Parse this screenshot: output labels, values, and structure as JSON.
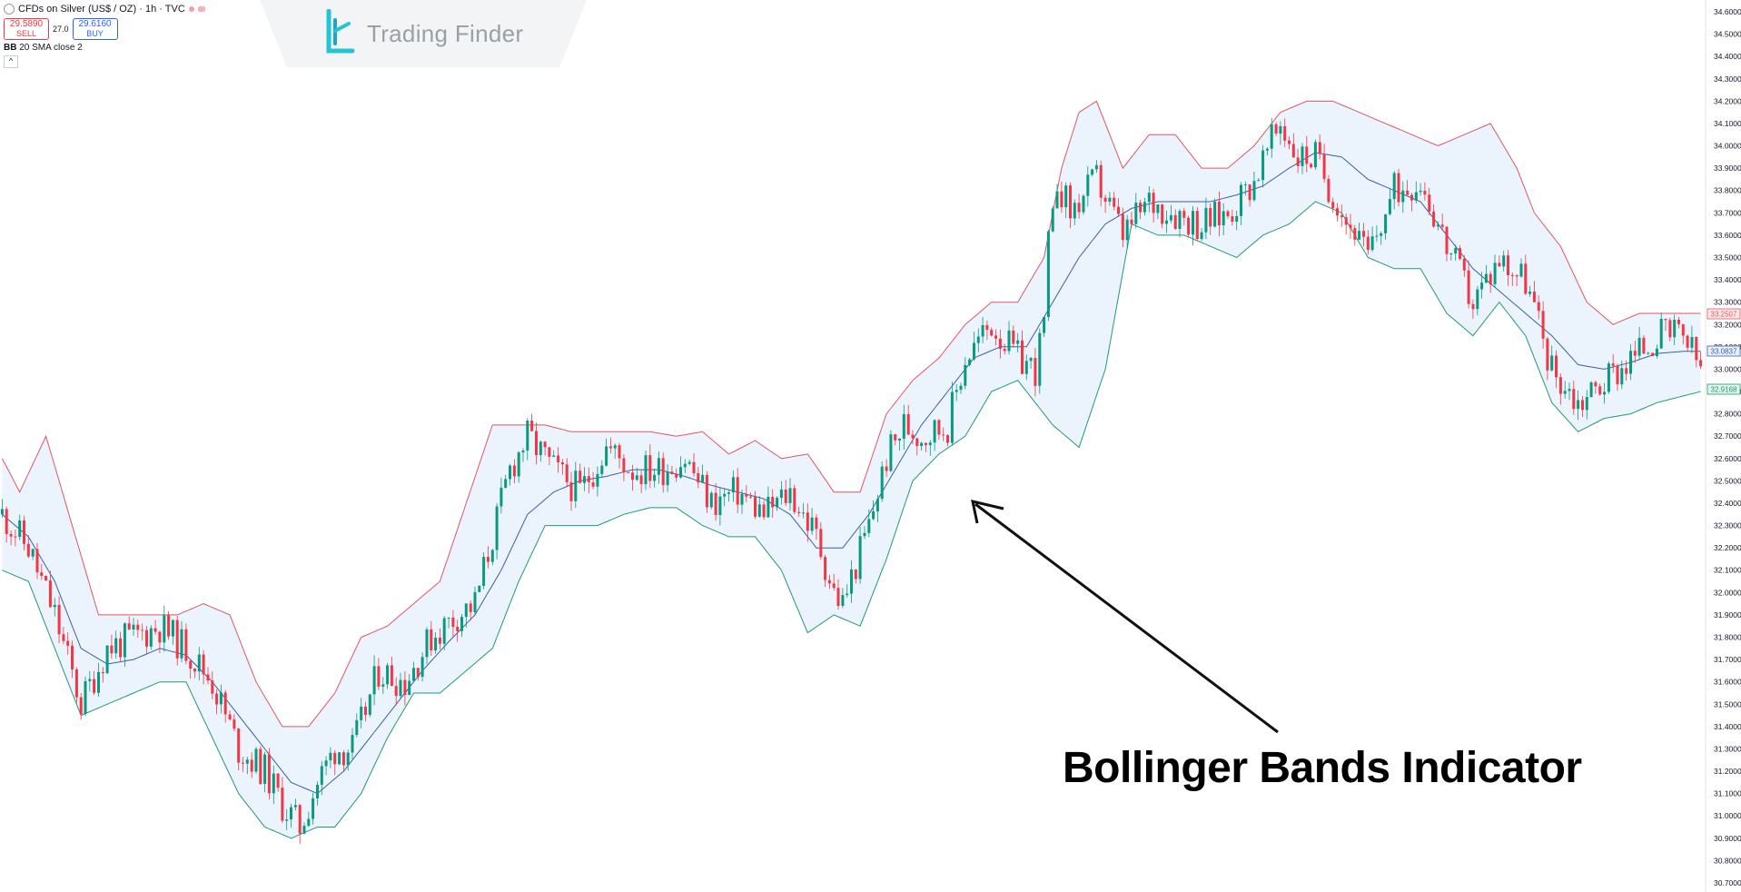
{
  "header": {
    "symbol_title": "CFDs on Silver (US$ / OZ) · 1h · TVC",
    "sell_price": "29.5890",
    "sell_label": "SELL",
    "spread": "27.0",
    "buy_price": "29.6160",
    "buy_label": "BUY",
    "indicator_abbr": "BB",
    "indicator_params": "20 SMA close 2",
    "collapse_glyph": "^"
  },
  "logo": {
    "text": "Trading Finder",
    "accent": "#22c4d6"
  },
  "annotation": {
    "text": "Bollinger Bands Indicator"
  },
  "colors": {
    "up": "#089981",
    "down": "#f23645",
    "upper_band": "#e0565f",
    "lower_band": "#1f9a73",
    "basis": "#3a5fa8",
    "band_fill": "#e8f1fb"
  },
  "price_labels": {
    "upper": "33.2507",
    "basis": "33.0837",
    "lower": "32.9168"
  },
  "chart_data": {
    "type": "candlestick",
    "indicator": "Bollinger Bands (20, SMA, close, 2)",
    "ylim": [
      30.7,
      34.6
    ],
    "y_ticks": [
      "34.6000",
      "34.5000",
      "34.4000",
      "34.3000",
      "34.2000",
      "34.1000",
      "34.0000",
      "33.9000",
      "33.8000",
      "33.7000",
      "33.6000",
      "33.5000",
      "33.4000",
      "33.3000",
      "33.2000",
      "33.1000",
      "33.0000",
      "32.9000",
      "32.8000",
      "32.7000",
      "32.6000",
      "32.5000",
      "32.4000",
      "32.3000",
      "32.2000",
      "32.1000",
      "32.0000",
      "31.9000",
      "31.8000",
      "31.7000",
      "31.6000",
      "31.5000",
      "31.4000",
      "31.3000",
      "31.2000",
      "31.1000",
      "31.0000",
      "30.9000",
      "30.8000",
      "30.7000"
    ],
    "close_path": [
      [
        0,
        32.35
      ],
      [
        6,
        32.2
      ],
      [
        12,
        31.9
      ],
      [
        18,
        31.5
      ],
      [
        24,
        31.75
      ],
      [
        30,
        31.8
      ],
      [
        36,
        31.85
      ],
      [
        42,
        31.75
      ],
      [
        48,
        31.6
      ],
      [
        54,
        31.3
      ],
      [
        60,
        31.2
      ],
      [
        64,
        31.05
      ],
      [
        68,
        30.95
      ],
      [
        72,
        31.15
      ],
      [
        76,
        31.3
      ],
      [
        80,
        31.3
      ],
      [
        86,
        31.65
      ],
      [
        92,
        31.6
      ],
      [
        98,
        31.8
      ],
      [
        104,
        31.9
      ],
      [
        108,
        31.95
      ],
      [
        112,
        32.25
      ],
      [
        116,
        32.55
      ],
      [
        120,
        32.7
      ],
      [
        126,
        32.55
      ],
      [
        132,
        32.45
      ],
      [
        138,
        32.65
      ],
      [
        144,
        32.55
      ],
      [
        150,
        32.55
      ],
      [
        156,
        32.6
      ],
      [
        162,
        32.4
      ],
      [
        168,
        32.45
      ],
      [
        174,
        32.35
      ],
      [
        180,
        32.45
      ],
      [
        186,
        32.25
      ],
      [
        190,
        32.0
      ],
      [
        192,
        31.95
      ],
      [
        198,
        32.3
      ],
      [
        202,
        32.6
      ],
      [
        206,
        32.75
      ],
      [
        210,
        32.7
      ],
      [
        216,
        32.75
      ],
      [
        220,
        33.05
      ],
      [
        226,
        33.2
      ],
      [
        232,
        33.05
      ],
      [
        236,
        33.0
      ],
      [
        238,
        33.2
      ],
      [
        240,
        33.9
      ],
      [
        244,
        33.7
      ],
      [
        250,
        33.85
      ],
      [
        256,
        33.6
      ],
      [
        262,
        33.75
      ],
      [
        268,
        33.7
      ],
      [
        274,
        33.65
      ],
      [
        280,
        33.7
      ],
      [
        286,
        33.85
      ],
      [
        292,
        34.1
      ],
      [
        296,
        33.95
      ],
      [
        300,
        33.95
      ],
      [
        306,
        33.7
      ],
      [
        312,
        33.5
      ],
      [
        318,
        33.8
      ],
      [
        324,
        33.85
      ],
      [
        330,
        33.55
      ],
      [
        336,
        33.3
      ],
      [
        342,
        33.5
      ],
      [
        348,
        33.4
      ],
      [
        354,
        33.0
      ],
      [
        360,
        32.85
      ],
      [
        366,
        32.95
      ],
      [
        372,
        33.05
      ],
      [
        378,
        33.15
      ],
      [
        384,
        33.15
      ],
      [
        388,
        33.0
      ]
    ],
    "upper_band": [
      [
        0,
        32.6
      ],
      [
        4,
        32.45
      ],
      [
        10,
        32.7
      ],
      [
        16,
        32.3
      ],
      [
        22,
        31.9
      ],
      [
        28,
        31.9
      ],
      [
        34,
        31.9
      ],
      [
        40,
        31.9
      ],
      [
        46,
        31.95
      ],
      [
        52,
        31.9
      ],
      [
        58,
        31.6
      ],
      [
        64,
        31.4
      ],
      [
        70,
        31.4
      ],
      [
        76,
        31.55
      ],
      [
        82,
        31.8
      ],
      [
        88,
        31.85
      ],
      [
        94,
        31.95
      ],
      [
        100,
        32.05
      ],
      [
        106,
        32.4
      ],
      [
        112,
        32.75
      ],
      [
        118,
        32.75
      ],
      [
        124,
        32.75
      ],
      [
        130,
        32.72
      ],
      [
        136,
        32.72
      ],
      [
        142,
        32.72
      ],
      [
        148,
        32.72
      ],
      [
        154,
        32.7
      ],
      [
        160,
        32.72
      ],
      [
        166,
        32.62
      ],
      [
        172,
        32.68
      ],
      [
        178,
        32.6
      ],
      [
        184,
        32.62
      ],
      [
        190,
        32.45
      ],
      [
        196,
        32.45
      ],
      [
        202,
        32.8
      ],
      [
        208,
        32.95
      ],
      [
        214,
        33.05
      ],
      [
        220,
        33.2
      ],
      [
        226,
        33.3
      ],
      [
        232,
        33.3
      ],
      [
        238,
        33.5
      ],
      [
        242,
        33.9
      ],
      [
        246,
        34.15
      ],
      [
        250,
        34.2
      ],
      [
        256,
        33.9
      ],
      [
        262,
        34.05
      ],
      [
        268,
        34.05
      ],
      [
        274,
        33.9
      ],
      [
        280,
        33.9
      ],
      [
        286,
        34.0
      ],
      [
        292,
        34.15
      ],
      [
        298,
        34.2
      ],
      [
        304,
        34.2
      ],
      [
        310,
        34.15
      ],
      [
        316,
        34.1
      ],
      [
        322,
        34.05
      ],
      [
        328,
        34.0
      ],
      [
        334,
        34.05
      ],
      [
        340,
        34.1
      ],
      [
        346,
        33.9
      ],
      [
        350,
        33.7
      ],
      [
        356,
        33.55
      ],
      [
        362,
        33.3
      ],
      [
        368,
        33.2
      ],
      [
        374,
        33.25
      ],
      [
        380,
        33.25
      ],
      [
        388,
        33.25
      ]
    ],
    "basis": [
      [
        0,
        32.35
      ],
      [
        6,
        32.25
      ],
      [
        12,
        32.05
      ],
      [
        18,
        31.75
      ],
      [
        24,
        31.68
      ],
      [
        30,
        31.7
      ],
      [
        36,
        31.75
      ],
      [
        42,
        31.72
      ],
      [
        48,
        31.6
      ],
      [
        54,
        31.45
      ],
      [
        60,
        31.3
      ],
      [
        66,
        31.15
      ],
      [
        72,
        31.1
      ],
      [
        78,
        31.2
      ],
      [
        84,
        31.35
      ],
      [
        90,
        31.5
      ],
      [
        96,
        31.65
      ],
      [
        102,
        31.78
      ],
      [
        108,
        31.9
      ],
      [
        114,
        32.1
      ],
      [
        120,
        32.35
      ],
      [
        126,
        32.45
      ],
      [
        132,
        32.5
      ],
      [
        138,
        32.52
      ],
      [
        144,
        32.55
      ],
      [
        150,
        32.55
      ],
      [
        156,
        32.52
      ],
      [
        162,
        32.48
      ],
      [
        168,
        32.45
      ],
      [
        174,
        32.42
      ],
      [
        180,
        32.35
      ],
      [
        186,
        32.2
      ],
      [
        192,
        32.2
      ],
      [
        198,
        32.35
      ],
      [
        204,
        32.55
      ],
      [
        210,
        32.75
      ],
      [
        216,
        32.9
      ],
      [
        222,
        33.05
      ],
      [
        228,
        33.1
      ],
      [
        234,
        33.1
      ],
      [
        240,
        33.3
      ],
      [
        246,
        33.5
      ],
      [
        252,
        33.65
      ],
      [
        258,
        33.72
      ],
      [
        264,
        33.75
      ],
      [
        270,
        33.75
      ],
      [
        276,
        33.75
      ],
      [
        282,
        33.78
      ],
      [
        288,
        33.82
      ],
      [
        294,
        33.9
      ],
      [
        300,
        33.97
      ],
      [
        306,
        33.95
      ],
      [
        312,
        33.85
      ],
      [
        318,
        33.8
      ],
      [
        324,
        33.75
      ],
      [
        330,
        33.6
      ],
      [
        336,
        33.45
      ],
      [
        342,
        33.35
      ],
      [
        348,
        33.25
      ],
      [
        354,
        33.15
      ],
      [
        360,
        33.02
      ],
      [
        366,
        33.0
      ],
      [
        372,
        33.03
      ],
      [
        378,
        33.07
      ],
      [
        384,
        33.08
      ],
      [
        388,
        33.08
      ]
    ],
    "lower_band": [
      [
        0,
        32.1
      ],
      [
        6,
        32.05
      ],
      [
        12,
        31.75
      ],
      [
        18,
        31.45
      ],
      [
        24,
        31.5
      ],
      [
        30,
        31.55
      ],
      [
        36,
        31.6
      ],
      [
        42,
        31.6
      ],
      [
        48,
        31.35
      ],
      [
        54,
        31.1
      ],
      [
        60,
        30.95
      ],
      [
        66,
        30.9
      ],
      [
        72,
        30.95
      ],
      [
        76,
        30.95
      ],
      [
        82,
        31.1
      ],
      [
        88,
        31.35
      ],
      [
        94,
        31.55
      ],
      [
        100,
        31.55
      ],
      [
        106,
        31.65
      ],
      [
        112,
        31.75
      ],
      [
        118,
        32.05
      ],
      [
        124,
        32.3
      ],
      [
        130,
        32.3
      ],
      [
        136,
        32.3
      ],
      [
        142,
        32.35
      ],
      [
        148,
        32.38
      ],
      [
        154,
        32.38
      ],
      [
        160,
        32.3
      ],
      [
        166,
        32.25
      ],
      [
        172,
        32.25
      ],
      [
        178,
        32.1
      ],
      [
        184,
        31.82
      ],
      [
        190,
        31.9
      ],
      [
        196,
        31.85
      ],
      [
        202,
        32.15
      ],
      [
        208,
        32.5
      ],
      [
        214,
        32.62
      ],
      [
        220,
        32.7
      ],
      [
        226,
        32.9
      ],
      [
        232,
        32.95
      ],
      [
        236,
        32.85
      ],
      [
        240,
        32.75
      ],
      [
        246,
        32.65
      ],
      [
        252,
        33.0
      ],
      [
        258,
        33.65
      ],
      [
        264,
        33.6
      ],
      [
        270,
        33.6
      ],
      [
        276,
        33.55
      ],
      [
        282,
        33.5
      ],
      [
        288,
        33.6
      ],
      [
        294,
        33.65
      ],
      [
        300,
        33.75
      ],
      [
        306,
        33.7
      ],
      [
        312,
        33.5
      ],
      [
        318,
        33.45
      ],
      [
        324,
        33.45
      ],
      [
        330,
        33.25
      ],
      [
        336,
        33.15
      ],
      [
        342,
        33.3
      ],
      [
        348,
        33.15
      ],
      [
        354,
        32.85
      ],
      [
        360,
        32.72
      ],
      [
        366,
        32.78
      ],
      [
        372,
        32.8
      ],
      [
        378,
        32.85
      ],
      [
        384,
        32.88
      ],
      [
        388,
        32.9
      ]
    ]
  }
}
